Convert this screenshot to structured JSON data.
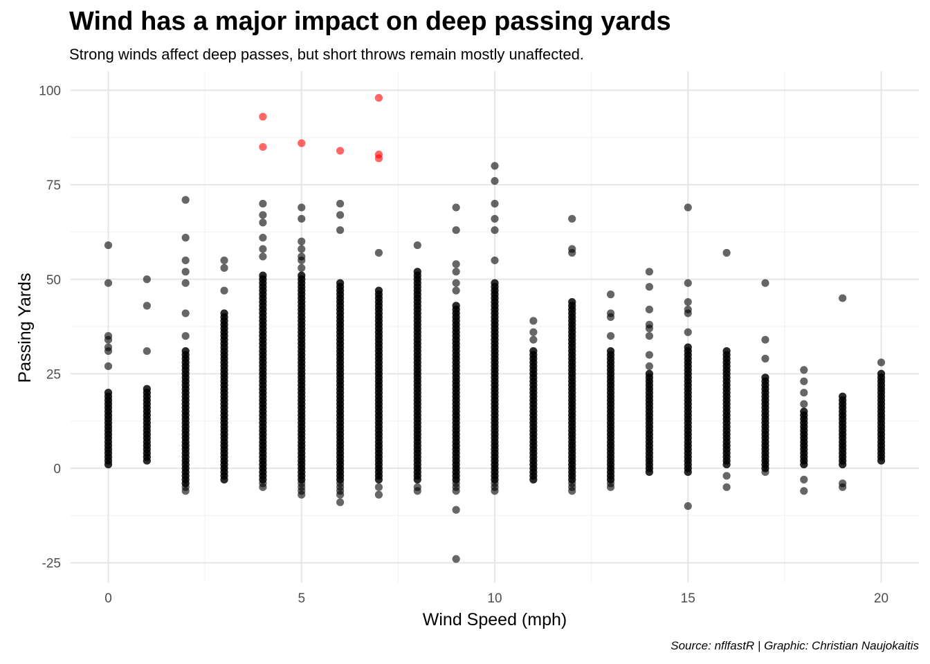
{
  "chart_data": {
    "type": "scatter",
    "title": "Wind has a major impact on deep passing yards",
    "subtitle": "Strong winds affect deep passes, but short throws remain mostly unaffected.",
    "caption": "Source: nflfastR | Graphic: Christian Naujokaitis",
    "xlabel": "Wind Speed (mph)",
    "ylabel": "Passing Yards",
    "xlim": [
      0,
      20
    ],
    "ylim": [
      -25,
      100
    ],
    "x_ticks": [
      0,
      5,
      10,
      15,
      20
    ],
    "y_ticks": [
      -25,
      0,
      25,
      50,
      75,
      100
    ],
    "grid": true,
    "colors": {
      "normal": "#000000",
      "highlight": "#ff0000"
    },
    "highlighted_points": [
      {
        "x": 4,
        "y": 93
      },
      {
        "x": 4,
        "y": 85
      },
      {
        "x": 5,
        "y": 86
      },
      {
        "x": 6,
        "y": 84
      },
      {
        "x": 7,
        "y": 98
      },
      {
        "x": 7,
        "y": 83
      },
      {
        "x": 7,
        "y": 82
      }
    ],
    "columns": [
      {
        "x": 0,
        "min": 1,
        "max": 20,
        "extra": [
          59,
          49,
          35,
          34,
          32,
          31,
          27
        ]
      },
      {
        "x": 1,
        "min": 2,
        "max": 21,
        "extra": [
          50,
          43,
          31
        ]
      },
      {
        "x": 2,
        "min": -4,
        "max": 31,
        "extra": [
          71,
          61,
          55,
          52,
          49,
          41,
          35,
          -5,
          -6
        ]
      },
      {
        "x": 3,
        "min": -3,
        "max": 41,
        "extra": [
          55,
          53,
          47
        ]
      },
      {
        "x": 4,
        "min": -3,
        "max": 51,
        "extra": [
          70,
          67,
          65,
          61,
          58,
          56,
          -4,
          -5
        ]
      },
      {
        "x": 5,
        "min": -3,
        "max": 51,
        "extra": [
          69,
          66,
          60,
          58,
          56,
          55,
          53,
          -4,
          -5,
          -6,
          -7
        ]
      },
      {
        "x": 6,
        "min": -3,
        "max": 49,
        "extra": [
          70,
          67,
          63,
          -4,
          -5,
          -6,
          -7,
          -9
        ]
      },
      {
        "x": 7,
        "min": -3,
        "max": 47,
        "extra": [
          57,
          -5,
          -7
        ]
      },
      {
        "x": 8,
        "min": -3,
        "max": 52,
        "extra": [
          59,
          -5,
          -6
        ]
      },
      {
        "x": 9,
        "min": -3,
        "max": 43,
        "extra": [
          69,
          63,
          54,
          52,
          49,
          47,
          -4,
          -5,
          -6,
          -11,
          -24
        ]
      },
      {
        "x": 10,
        "min": -3,
        "max": 49,
        "extra": [
          80,
          76,
          70,
          66,
          63,
          55,
          -4,
          -5,
          -6
        ]
      },
      {
        "x": 11,
        "min": -3,
        "max": 31,
        "extra": [
          39,
          36,
          34
        ]
      },
      {
        "x": 12,
        "min": -3,
        "max": 44,
        "extra": [
          66,
          58,
          57,
          -4,
          -5,
          -6
        ]
      },
      {
        "x": 13,
        "min": -3,
        "max": 31,
        "extra": [
          46,
          41,
          40,
          35,
          -4,
          -5
        ]
      },
      {
        "x": 14,
        "min": -1,
        "max": 25,
        "extra": [
          52,
          48,
          42,
          38,
          37,
          35,
          30,
          27
        ]
      },
      {
        "x": 15,
        "min": -1,
        "max": 32,
        "extra": [
          69,
          49,
          44,
          42,
          41,
          36,
          -10
        ]
      },
      {
        "x": 16,
        "min": 1,
        "max": 31,
        "extra": [
          57,
          -2,
          -5
        ]
      },
      {
        "x": 17,
        "min": 0,
        "max": 24,
        "extra": [
          49,
          34,
          29,
          -1
        ]
      },
      {
        "x": 18,
        "min": 1,
        "max": 15,
        "extra": [
          26,
          23,
          20,
          17,
          -3,
          -6
        ]
      },
      {
        "x": 19,
        "min": 1,
        "max": 19,
        "extra": [
          45,
          -4,
          -5
        ]
      },
      {
        "x": 20,
        "min": 2,
        "max": 25,
        "extra": [
          28
        ]
      }
    ]
  }
}
